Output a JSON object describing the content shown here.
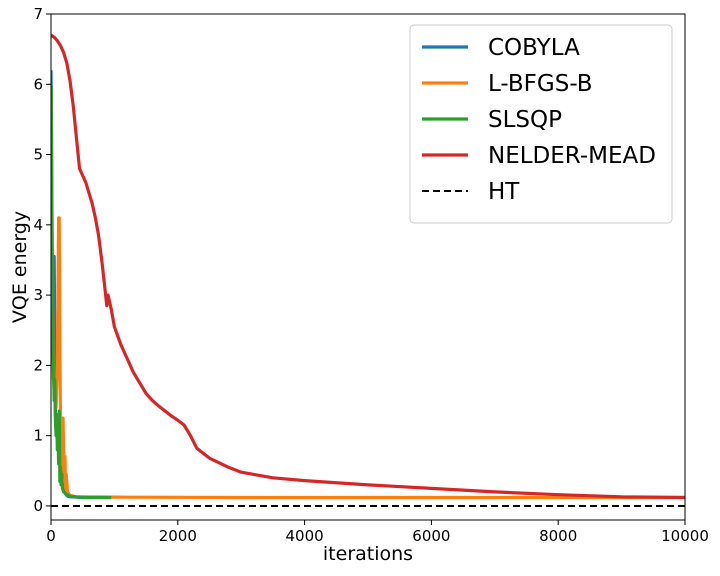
{
  "chart_data": {
    "type": "line",
    "xlabel": "iterations",
    "ylabel": "VQE energy",
    "xlim": [
      0,
      10000
    ],
    "ylim": [
      -0.2,
      7.0
    ],
    "xticks": [
      0,
      2000,
      4000,
      6000,
      8000,
      10000
    ],
    "yticks": [
      0,
      1,
      2,
      3,
      4,
      5,
      6,
      7
    ],
    "grid": false,
    "legend_position": "top-right",
    "series": [
      {
        "name": "COBYLA",
        "color": "#1f77b4",
        "x": [
          0,
          10,
          20,
          30,
          40,
          50,
          60,
          70,
          80,
          90,
          100,
          120,
          140,
          160,
          180,
          200,
          230,
          260,
          300,
          400,
          500,
          600
        ],
        "y": [
          6.2,
          5.0,
          3.5,
          2.6,
          1.8,
          3.55,
          2.2,
          1.3,
          1.15,
          1.05,
          1.0,
          0.85,
          0.65,
          0.45,
          0.3,
          0.22,
          0.17,
          0.14,
          0.13,
          0.125,
          0.12,
          0.12
        ]
      },
      {
        "name": "L-BFGS-B",
        "color": "#ff7f0e",
        "x": [
          0,
          20,
          40,
          60,
          80,
          100,
          110,
          120,
          130,
          140,
          150,
          160,
          180,
          190,
          200,
          210,
          220,
          230,
          240,
          260,
          300,
          400,
          1000,
          3000,
          6000,
          8000,
          9000,
          10000
        ],
        "y": [
          5.9,
          3.0,
          1.8,
          1.5,
          1.4,
          2.05,
          3.0,
          4.1,
          4.1,
          2.1,
          1.25,
          0.9,
          0.5,
          1.25,
          0.7,
          0.4,
          0.7,
          0.25,
          0.45,
          0.2,
          0.15,
          0.13,
          0.125,
          0.12,
          0.12,
          0.12,
          0.12,
          0.12
        ]
      },
      {
        "name": "SLSQP",
        "color": "#2ca02c",
        "x": [
          0,
          5,
          10,
          20,
          30,
          40,
          50,
          60,
          70,
          80,
          90,
          100,
          110,
          120,
          130,
          140,
          150,
          160,
          170,
          180,
          200,
          250,
          300,
          400,
          600,
          800,
          950
        ],
        "y": [
          6.0,
          5.95,
          4.5,
          3.0,
          2.2,
          2.0,
          1.5,
          1.8,
          1.2,
          1.0,
          1.3,
          0.8,
          1.0,
          0.6,
          1.35,
          0.35,
          0.55,
          0.3,
          0.45,
          0.25,
          0.2,
          0.16,
          0.14,
          0.13,
          0.12,
          0.12,
          0.12
        ]
      },
      {
        "name": "NELDER-MEAD",
        "color": "#d62728",
        "x": [
          0,
          50,
          100,
          150,
          200,
          250,
          300,
          350,
          400,
          450,
          500,
          550,
          600,
          650,
          700,
          750,
          800,
          850,
          880,
          900,
          950,
          1000,
          1100,
          1200,
          1300,
          1400,
          1500,
          1600,
          1700,
          1800,
          1900,
          2000,
          2100,
          2200,
          2300,
          2500,
          2800,
          3000,
          3500,
          4000,
          4500,
          5000,
          6000,
          7000,
          8000,
          9000,
          10000
        ],
        "y": [
          6.7,
          6.67,
          6.62,
          6.55,
          6.45,
          6.3,
          6.05,
          5.7,
          5.25,
          4.8,
          4.7,
          4.6,
          4.45,
          4.3,
          4.1,
          3.85,
          3.5,
          3.1,
          2.85,
          3.0,
          2.8,
          2.55,
          2.3,
          2.1,
          1.9,
          1.75,
          1.6,
          1.5,
          1.42,
          1.35,
          1.28,
          1.22,
          1.15,
          1.0,
          0.82,
          0.68,
          0.55,
          0.48,
          0.4,
          0.36,
          0.33,
          0.3,
          0.25,
          0.2,
          0.16,
          0.13,
          0.12
        ]
      },
      {
        "name": "HT",
        "color": "#000000",
        "dashed": true,
        "x": [
          0,
          10000
        ],
        "y": [
          0,
          0
        ]
      }
    ]
  }
}
